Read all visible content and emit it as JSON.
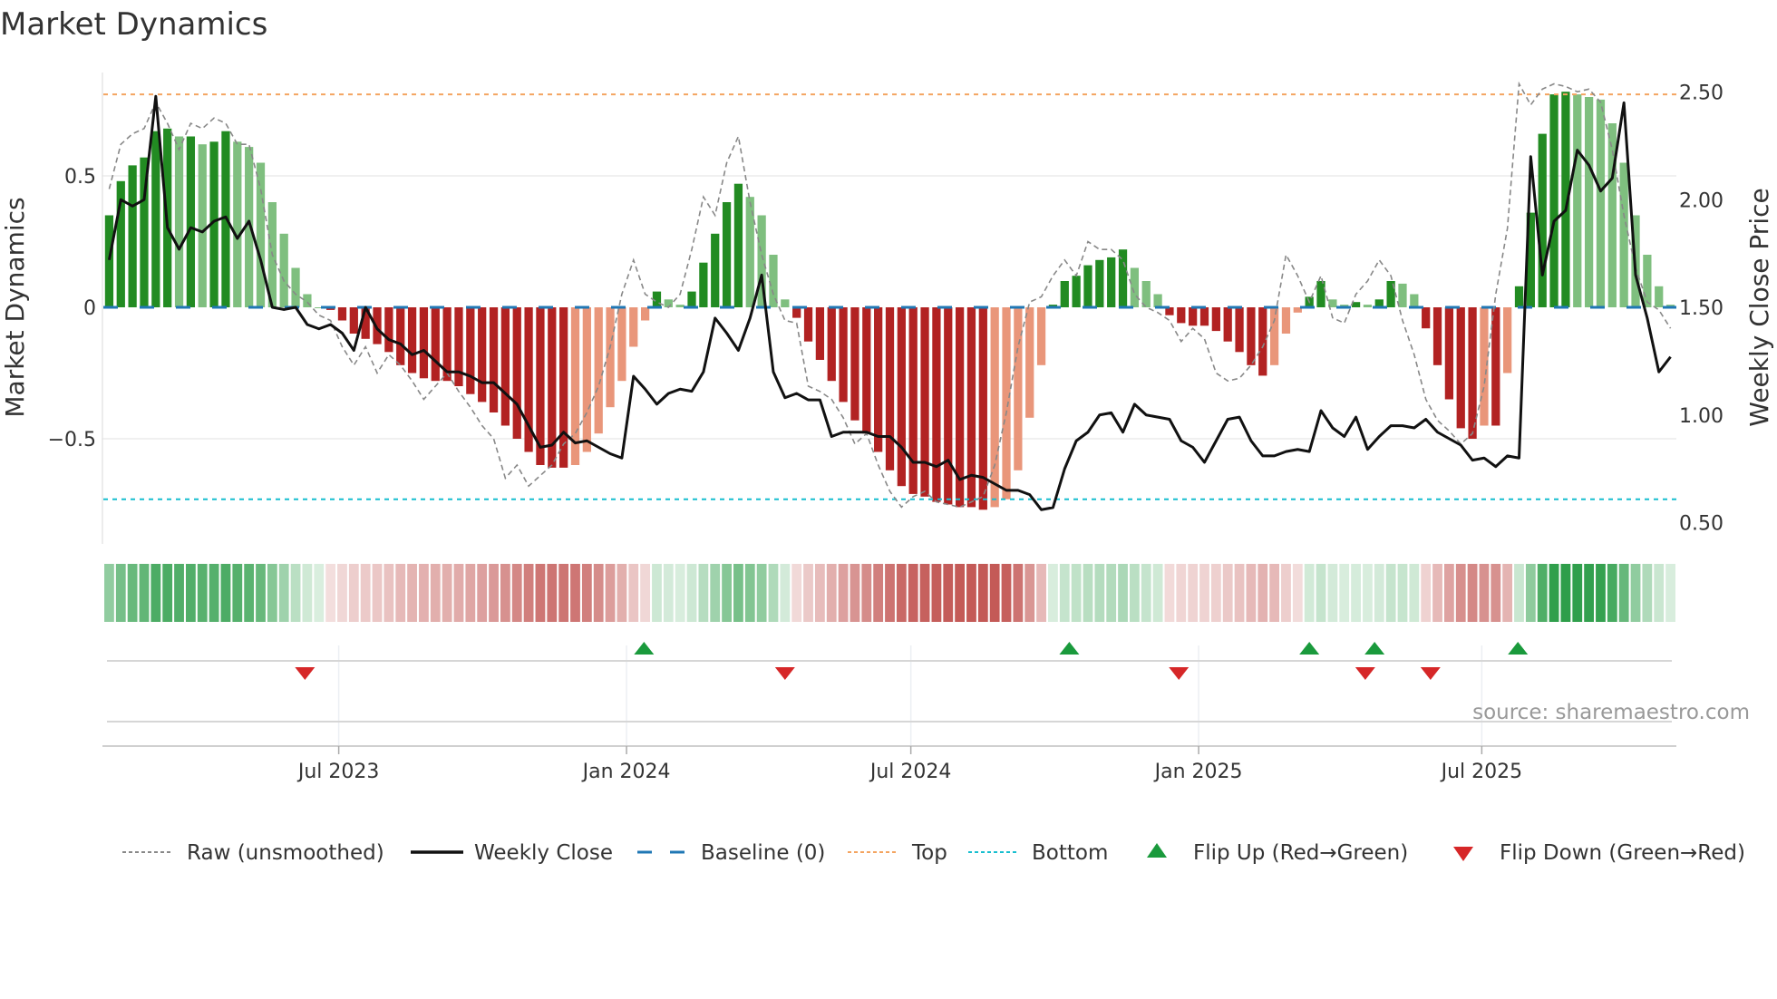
{
  "chart_data": {
    "type": "bar",
    "title": "Market Dynamics",
    "ylabel": "Market Dynamics",
    "ylabel_right": "Weekly Close Price",
    "ylim": [
      -0.86,
      0.9
    ],
    "ylim_right": [
      0.45,
      2.65
    ],
    "yticks": [
      {
        "value": 0.5,
        "label": "0.5"
      },
      {
        "value": 0,
        "label": "0"
      },
      {
        "value": -0.5,
        "label": "−0.5"
      }
    ],
    "yticks_right": [
      {
        "value": 2.5,
        "label": "2.50"
      },
      {
        "value": 2.0,
        "label": "2.00"
      },
      {
        "value": 1.5,
        "label": "1.50"
      },
      {
        "value": 1.0,
        "label": "1.00"
      },
      {
        "value": 0.5,
        "label": "0.50"
      }
    ],
    "x_ticks": [
      {
        "label": "Jul 2023",
        "week": 19.7
      },
      {
        "label": "Jan 2024",
        "week": 44.4
      },
      {
        "label": "Jul 2024",
        "week": 68.8
      },
      {
        "label": "Jan 2025",
        "week": 93.5
      },
      {
        "label": "Jul 2025",
        "week": 117.8
      }
    ],
    "top_level": 0.81,
    "bottom_level": -0.73,
    "baseline": 0,
    "dynamics": [
      0.35,
      0.48,
      0.54,
      0.57,
      0.67,
      0.68,
      0.65,
      0.65,
      0.62,
      0.63,
      0.67,
      0.63,
      0.61,
      0.55,
      0.4,
      0.28,
      0.15,
      0.05,
      0.0,
      -0.01,
      -0.05,
      -0.1,
      -0.12,
      -0.14,
      -0.17,
      -0.22,
      -0.25,
      -0.27,
      -0.28,
      -0.28,
      -0.3,
      -0.33,
      -0.36,
      -0.4,
      -0.45,
      -0.5,
      -0.55,
      -0.6,
      -0.61,
      -0.61,
      -0.6,
      -0.55,
      -0.48,
      -0.38,
      -0.28,
      -0.15,
      -0.05,
      0.06,
      0.03,
      0.01,
      0.06,
      0.17,
      0.28,
      0.4,
      0.47,
      0.42,
      0.35,
      0.2,
      0.03,
      -0.04,
      -0.13,
      -0.2,
      -0.28,
      -0.36,
      -0.43,
      -0.48,
      -0.55,
      -0.62,
      -0.68,
      -0.71,
      -0.72,
      -0.74,
      -0.75,
      -0.76,
      -0.76,
      -0.77,
      -0.76,
      -0.73,
      -0.62,
      -0.42,
      -0.22,
      0.01,
      0.1,
      0.12,
      0.16,
      0.18,
      0.19,
      0.22,
      0.15,
      0.1,
      0.05,
      -0.03,
      -0.06,
      -0.07,
      -0.07,
      -0.09,
      -0.13,
      -0.17,
      -0.22,
      -0.26,
      -0.22,
      -0.1,
      -0.02,
      0.04,
      0.1,
      0.03,
      0.01,
      0.02,
      0.01,
      0.03,
      0.1,
      0.09,
      0.05,
      -0.08,
      -0.22,
      -0.35,
      -0.46,
      -0.5,
      -0.45,
      -0.45,
      -0.25,
      0.08,
      0.36,
      0.66,
      0.81,
      0.82,
      0.81,
      0.8,
      0.79,
      0.7,
      0.55,
      0.35,
      0.2,
      0.08,
      0.01
    ],
    "raw": [
      0.45,
      0.62,
      0.66,
      0.68,
      0.78,
      0.7,
      0.6,
      0.7,
      0.68,
      0.72,
      0.7,
      0.62,
      0.62,
      0.45,
      0.2,
      0.1,
      0.05,
      0.02,
      -0.03,
      -0.05,
      -0.15,
      -0.22,
      -0.15,
      -0.25,
      -0.18,
      -0.22,
      -0.28,
      -0.35,
      -0.3,
      -0.25,
      -0.32,
      -0.38,
      -0.45,
      -0.5,
      -0.65,
      -0.6,
      -0.68,
      -0.64,
      -0.6,
      -0.52,
      -0.48,
      -0.4,
      -0.3,
      -0.15,
      0.05,
      0.18,
      0.05,
      0.02,
      0.0,
      0.05,
      0.22,
      0.42,
      0.35,
      0.55,
      0.65,
      0.4,
      0.2,
      0.05,
      -0.05,
      -0.06,
      -0.3,
      -0.32,
      -0.35,
      -0.42,
      -0.52,
      -0.48,
      -0.6,
      -0.7,
      -0.76,
      -0.72,
      -0.7,
      -0.74,
      -0.75,
      -0.76,
      -0.74,
      -0.72,
      -0.6,
      -0.4,
      -0.15,
      0.02,
      0.04,
      0.12,
      0.18,
      0.12,
      0.25,
      0.22,
      0.22,
      0.18,
      0.05,
      0.0,
      -0.02,
      -0.05,
      -0.13,
      -0.08,
      -0.12,
      -0.25,
      -0.28,
      -0.27,
      -0.22,
      -0.15,
      -0.05,
      0.2,
      0.12,
      0.02,
      0.12,
      -0.04,
      -0.06,
      0.05,
      0.1,
      0.18,
      0.12,
      -0.05,
      -0.18,
      -0.35,
      -0.43,
      -0.47,
      -0.52,
      -0.48,
      -0.3,
      0.05,
      0.3,
      0.85,
      0.77,
      0.83,
      0.85,
      0.84,
      0.82,
      0.83,
      0.78,
      0.6,
      0.35,
      0.15,
      0.02,
      -0.01,
      -0.08
    ],
    "close": [
      1.72,
      2.0,
      1.97,
      2.0,
      2.48,
      1.87,
      1.77,
      1.87,
      1.85,
      1.9,
      1.92,
      1.82,
      1.9,
      1.72,
      1.5,
      1.49,
      1.5,
      1.42,
      1.4,
      1.42,
      1.38,
      1.3,
      1.5,
      1.4,
      1.35,
      1.33,
      1.28,
      1.3,
      1.25,
      1.2,
      1.2,
      1.18,
      1.15,
      1.15,
      1.1,
      1.05,
      0.95,
      0.85,
      0.86,
      0.92,
      0.87,
      0.88,
      0.85,
      0.82,
      0.8,
      1.18,
      1.12,
      1.05,
      1.1,
      1.12,
      1.11,
      1.2,
      1.45,
      1.38,
      1.3,
      1.45,
      1.65,
      1.2,
      1.08,
      1.1,
      1.07,
      1.07,
      0.9,
      0.92,
      0.92,
      0.92,
      0.9,
      0.9,
      0.85,
      0.78,
      0.78,
      0.76,
      0.79,
      0.7,
      0.72,
      0.71,
      0.68,
      0.65,
      0.65,
      0.63,
      0.56,
      0.57,
      0.75,
      0.88,
      0.92,
      1.0,
      1.01,
      0.92,
      1.05,
      1.0,
      0.99,
      0.98,
      0.88,
      0.85,
      0.78,
      0.88,
      0.98,
      0.99,
      0.88,
      0.81,
      0.81,
      0.83,
      0.84,
      0.83,
      1.02,
      0.94,
      0.9,
      0.99,
      0.84,
      0.9,
      0.95,
      0.95,
      0.94,
      0.98,
      0.92,
      0.89,
      0.86,
      0.79,
      0.8,
      0.76,
      0.81,
      0.8,
      2.2,
      1.65,
      1.9,
      1.95,
      2.23,
      2.16,
      2.04,
      2.1,
      2.45,
      1.65,
      1.45,
      1.2,
      1.27
    ],
    "flip_up_weeks": [
      45.9,
      82.4,
      103.0,
      108.6,
      120.9
    ],
    "flip_down_weeks": [
      16.8,
      58.0,
      91.8,
      107.8,
      113.4
    ],
    "colors": {
      "green_strong": "#228b22",
      "green_fading": "#7fbf7f",
      "red_strong": "#b22222",
      "red_fading": "#e9967a",
      "baseline": "#1f77b4",
      "top": "#f4a460",
      "bottom": "#17becf",
      "flip_up": "#1a9a3c",
      "flip_down": "#d62728"
    },
    "legend": {
      "position": "bottom",
      "items": [
        {
          "key": "raw",
          "label": "Raw (unsmoothed)"
        },
        {
          "key": "close",
          "label": "Weekly Close"
        },
        {
          "key": "baseline",
          "label": "Baseline (0)"
        },
        {
          "key": "top",
          "label": "Top"
        },
        {
          "key": "bottom",
          "label": "Bottom"
        },
        {
          "key": "flip_up",
          "label": "Flip Up (Red→Green)"
        },
        {
          "key": "flip_down",
          "label": "Flip Down (Green→Red)"
        }
      ]
    },
    "source": "source: sharemaestro.com"
  }
}
